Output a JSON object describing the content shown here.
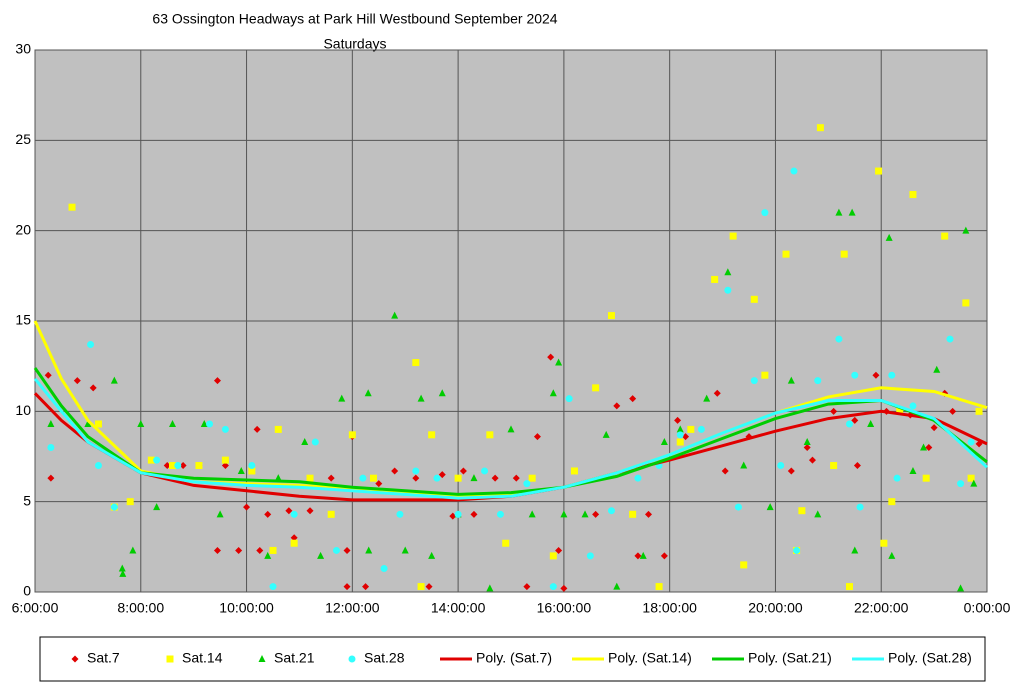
{
  "chart_data": {
    "type": "scatter",
    "title": "63 Ossington Headways at Park Hill Westbound September 2024",
    "subtitle": "Saturdays",
    "xlim": [
      6,
      24
    ],
    "xticks": [
      {
        "value": 6,
        "label": "6:00:00"
      },
      {
        "value": 8,
        "label": "8:00:00"
      },
      {
        "value": 10,
        "label": "10:00:00"
      },
      {
        "value": 12,
        "label": "12:00:00"
      },
      {
        "value": 14,
        "label": "14:00:00"
      },
      {
        "value": 16,
        "label": "16:00:00"
      },
      {
        "value": 18,
        "label": "18:00:00"
      },
      {
        "value": 20,
        "label": "20:00:00"
      },
      {
        "value": 22,
        "label": "22:00:00"
      },
      {
        "value": 24,
        "label": "0:00:00"
      }
    ],
    "ylim": [
      0,
      30
    ],
    "yticks": [
      0,
      5,
      10,
      15,
      20,
      25,
      30
    ],
    "grid": true,
    "legend": "bottom",
    "series": [
      {
        "name": "Sat.7",
        "type": "scatter",
        "marker": "diamond",
        "color": "#e00000",
        "x": [
          6.25,
          6.3,
          6.8,
          7.1,
          8.5,
          8.8,
          9.1,
          9.45,
          9.45,
          9.6,
          9.85,
          10.0,
          10.2,
          10.25,
          10.4,
          10.8,
          10.9,
          11.2,
          11.6,
          11.9,
          11.9,
          12.0,
          12.25,
          12.5,
          12.8,
          13.2,
          13.45,
          13.7,
          13.9,
          14.1,
          14.3,
          14.7,
          15.1,
          15.3,
          15.5,
          15.75,
          15.9,
          16.0,
          16.2,
          16.6,
          17.0,
          17.3,
          17.4,
          17.6,
          17.9,
          18.15,
          18.3,
          18.9,
          19.05,
          19.5,
          20.3,
          20.6,
          20.7,
          21.1,
          21.5,
          21.55,
          21.9,
          22.1,
          22.55,
          22.9,
          23.0,
          23.2,
          23.35,
          23.85
        ],
        "values": [
          12,
          6.3,
          11.7,
          11.3,
          7,
          7,
          7,
          11.7,
          2.3,
          7,
          2.3,
          4.7,
          9,
          2.3,
          4.3,
          4.5,
          3,
          4.5,
          6.3,
          0.3,
          2.3,
          8.6,
          0.3,
          6,
          6.7,
          6.3,
          0.3,
          6.5,
          4.2,
          6.7,
          4.3,
          6.3,
          6.3,
          0.3,
          8.6,
          13,
          2.3,
          0.2,
          6.7,
          4.3,
          10.3,
          10.7,
          2,
          4.3,
          2,
          9.5,
          8.6,
          11,
          6.7,
          8.6,
          6.7,
          8,
          7.3,
          10,
          9.5,
          7,
          12,
          10,
          9.8,
          8,
          9.1,
          11,
          10,
          8.2
        ]
      },
      {
        "name": "Sat.14",
        "type": "scatter",
        "marker": "square",
        "color": "#ffff00",
        "x": [
          6.7,
          7.2,
          7.5,
          7.8,
          8.2,
          8.6,
          9.1,
          9.6,
          10.1,
          10.5,
          10.6,
          10.9,
          11.2,
          11.6,
          12.0,
          12.4,
          13.2,
          13.3,
          13.5,
          14.0,
          14.6,
          14.9,
          15.4,
          15.8,
          16.2,
          16.6,
          16.9,
          17.3,
          17.8,
          18.2,
          18.4,
          18.85,
          19.2,
          19.4,
          19.6,
          19.8,
          20.2,
          20.4,
          20.5,
          20.85,
          21.1,
          21.3,
          21.4,
          21.95,
          22.05,
          22.2,
          22.35,
          22.6,
          22.85,
          23.2,
          23.6,
          23.7,
          23.85
        ],
        "values": [
          21.3,
          9.3,
          4.7,
          5,
          7.3,
          7,
          7,
          7.3,
          6.7,
          2.3,
          9,
          2.7,
          6.3,
          4.3,
          8.7,
          6.3,
          12.7,
          0.3,
          8.7,
          6.3,
          8.7,
          2.7,
          6.3,
          2,
          6.7,
          11.3,
          15.3,
          4.3,
          0.3,
          8.3,
          9,
          17.3,
          19.7,
          1.5,
          16.2,
          12,
          18.7,
          2.3,
          4.5,
          25.7,
          7,
          18.7,
          0.3,
          23.3,
          2.7,
          5,
          10,
          22,
          6.3,
          19.7,
          16,
          6.3,
          10
        ]
      },
      {
        "name": "Sat.21",
        "type": "scatter",
        "marker": "triangle",
        "color": "#00cc00",
        "x": [
          6.3,
          7.0,
          7.5,
          7.65,
          7.66,
          7.85,
          8.0,
          8.3,
          8.6,
          9.2,
          9.5,
          9.9,
          10.4,
          10.6,
          11.1,
          11.4,
          11.8,
          12.3,
          12.31,
          12.8,
          13.0,
          13.3,
          13.5,
          13.7,
          14.0,
          14.3,
          14.6,
          15.0,
          15.4,
          15.8,
          15.9,
          16.0,
          16.4,
          16.8,
          17.0,
          17.5,
          17.9,
          18.2,
          18.7,
          19.1,
          19.4,
          19.9,
          20.3,
          20.6,
          20.8,
          21.2,
          21.45,
          21.5,
          21.8,
          22.15,
          22.2,
          22.6,
          22.8,
          23.05,
          23.5,
          23.6,
          23.75
        ],
        "values": [
          9.3,
          9.3,
          11.7,
          1.3,
          1,
          2.3,
          9.3,
          4.7,
          9.3,
          9.3,
          4.3,
          6.7,
          2,
          6.3,
          8.3,
          2,
          10.7,
          11,
          2.3,
          15.3,
          2.3,
          10.7,
          2,
          11,
          4.3,
          6.3,
          0.2,
          9,
          4.3,
          11,
          12.7,
          4.3,
          4.3,
          8.7,
          0.3,
          2,
          8.3,
          9,
          10.7,
          17.7,
          7,
          4.7,
          11.7,
          8.3,
          4.3,
          21,
          21,
          2.3,
          9.3,
          19.6,
          2,
          6.7,
          8,
          12.3,
          0.2,
          20,
          6
        ]
      },
      {
        "name": "Sat.28",
        "type": "scatter",
        "marker": "circle",
        "color": "#33ffff",
        "x": [
          6.3,
          7.05,
          7.2,
          7.5,
          8.3,
          8.7,
          9.3,
          9.6,
          10.1,
          10.5,
          10.9,
          11.3,
          11.7,
          12.2,
          12.6,
          12.9,
          13.2,
          13.6,
          14.0,
          14.5,
          14.8,
          15.3,
          15.8,
          16.1,
          16.5,
          16.9,
          17.4,
          17.8,
          18.2,
          18.6,
          19.1,
          19.3,
          19.6,
          19.8,
          20.1,
          20.35,
          20.4,
          20.8,
          21.2,
          21.4,
          21.5,
          21.6,
          22.2,
          22.3,
          22.6,
          23.3,
          23.5,
          23.7
        ],
        "values": [
          8,
          13.7,
          7,
          4.7,
          7.3,
          7,
          9.3,
          9,
          7,
          0.3,
          4.3,
          8.3,
          2.3,
          6.3,
          1.3,
          4.3,
          6.7,
          6.3,
          4.3,
          6.7,
          4.3,
          6,
          0.3,
          10.7,
          2,
          4.5,
          6.3,
          7,
          8.7,
          9,
          16.7,
          4.7,
          11.7,
          21,
          7,
          23.3,
          2.3,
          11.7,
          14,
          9.3,
          12,
          4.7,
          12,
          6.3,
          10.3,
          14,
          6,
          8.3
        ]
      },
      {
        "name": "Poly. (Sat.7)",
        "type": "line",
        "color": "#e00000",
        "x": [
          6,
          6.5,
          7,
          8,
          9,
          10,
          11,
          12,
          13,
          14,
          15,
          16,
          17,
          18,
          19,
          20,
          21,
          22,
          23,
          24
        ],
        "values": [
          11,
          9.5,
          8.3,
          6.6,
          5.9,
          5.6,
          5.3,
          5.1,
          5.1,
          5.1,
          5.3,
          5.8,
          6.6,
          7.3,
          8.1,
          8.9,
          9.6,
          10,
          9.6,
          8.2
        ]
      },
      {
        "name": "Poly. (Sat.14)",
        "type": "line",
        "color": "#ffff00",
        "x": [
          6,
          6.5,
          7,
          8,
          9,
          10,
          11,
          12,
          13,
          14,
          15,
          16,
          17,
          18,
          19,
          20,
          21,
          22,
          23,
          24
        ],
        "values": [
          15,
          11.8,
          9.5,
          6.7,
          6.1,
          6,
          5.9,
          5.7,
          5.5,
          5.3,
          5.4,
          5.8,
          6.6,
          7.6,
          8.8,
          9.9,
          10.8,
          11.3,
          11.1,
          10.2
        ]
      },
      {
        "name": "Poly. (Sat.21)",
        "type": "line",
        "color": "#00cc00",
        "x": [
          6,
          6.5,
          7,
          8,
          9,
          10,
          11,
          12,
          13,
          14,
          15,
          16,
          17,
          18,
          19,
          20,
          21,
          22,
          23,
          24
        ],
        "values": [
          12.4,
          10.3,
          8.6,
          6.6,
          6.3,
          6.2,
          6.1,
          5.8,
          5.6,
          5.4,
          5.5,
          5.8,
          6.4,
          7.4,
          8.5,
          9.6,
          10.4,
          10.6,
          9.5,
          7.2
        ]
      },
      {
        "name": "Poly. (Sat.28)",
        "type": "line",
        "color": "#33ffff",
        "x": [
          6,
          6.5,
          7,
          8,
          9,
          10,
          11,
          12,
          13,
          14,
          15,
          16,
          17,
          18,
          19,
          20,
          21,
          22,
          23,
          24
        ],
        "values": [
          11.8,
          10,
          8.3,
          6.6,
          6.1,
          5.9,
          5.8,
          5.6,
          5.4,
          5.2,
          5.3,
          5.8,
          6.6,
          7.6,
          8.8,
          9.9,
          10.6,
          10.6,
          9.6,
          6.9
        ]
      }
    ]
  }
}
